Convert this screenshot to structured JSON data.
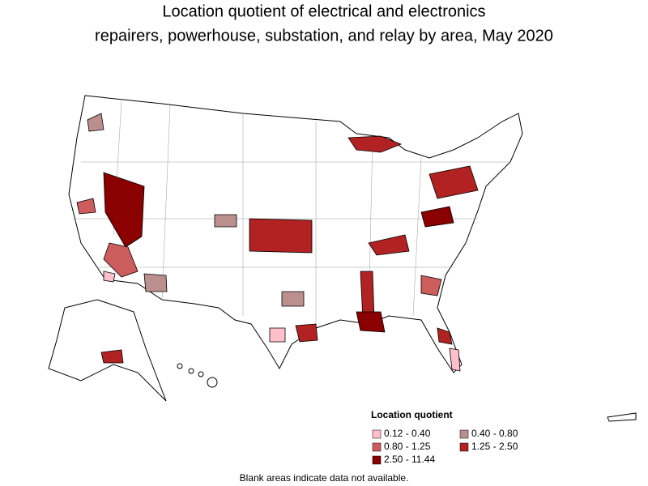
{
  "header": {
    "title_lines": [
      "Location quotient of electrical and electronics",
      "repairers, powerhouse, substation, and relay by area, May 2020"
    ]
  },
  "legend": {
    "title": "Location quotient",
    "items": [
      {
        "label": "0.12 - 0.40",
        "color": "#ffc0cb"
      },
      {
        "label": "0.40 - 0.80",
        "color": "#bc8f8f"
      },
      {
        "label": "0.80 - 1.25",
        "color": "#cd5c5c"
      },
      {
        "label": "1.25 - 2.50",
        "color": "#b22222"
      },
      {
        "label": "2.50 - 11.44",
        "color": "#8b0000"
      }
    ]
  },
  "footnote": "Blank areas indicate data not available."
}
